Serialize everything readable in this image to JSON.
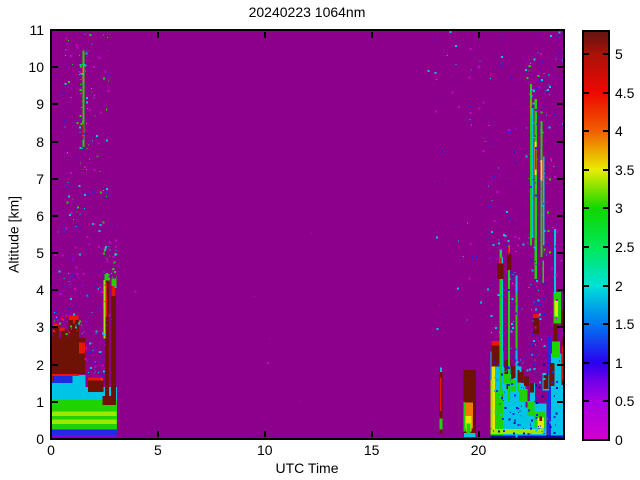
{
  "chart_data": {
    "type": "heatmap",
    "title": "20240223 1064nm",
    "xlabel": "UTC Time",
    "ylabel": "Altitude [km]",
    "xlim": [
      0,
      24
    ],
    "ylim": [
      0,
      11
    ],
    "xticks": [
      0,
      5,
      10,
      15,
      20
    ],
    "yticks": [
      0,
      1,
      2,
      3,
      4,
      5,
      6,
      7,
      8,
      9,
      10,
      11
    ],
    "grid": false,
    "legend": "colorbar-right",
    "background_color": "#8C008C",
    "colorbar": {
      "ticks": [
        0,
        0.5,
        1,
        1.5,
        2,
        2.5,
        3,
        3.5,
        4,
        4.5,
        5
      ],
      "vmin": 0,
      "vmax": 5.3,
      "stops": [
        [
          0,
          "#D000D0"
        ],
        [
          0.5,
          "#A800E0"
        ],
        [
          0.75,
          "#7700E8"
        ],
        [
          1,
          "#2A00EE"
        ],
        [
          1.5,
          "#0077F0"
        ],
        [
          2,
          "#00E0D8"
        ],
        [
          2.5,
          "#00E858"
        ],
        [
          3,
          "#11D600"
        ],
        [
          3.5,
          "#E8EC00"
        ],
        [
          4,
          "#F06000"
        ],
        [
          4.5,
          "#EE0800"
        ],
        [
          5,
          "#AA1208"
        ],
        [
          5.3,
          "#601410"
        ]
      ]
    },
    "palette": {
      "bg": "#8C008C",
      "maroon": "#6E1206",
      "red": "#E81800",
      "orange": "#F07800",
      "yellow": "#E6E600",
      "ygreen": "#A0E600",
      "green": "#1ED400",
      "bgreen": "#00E05A",
      "cyan": "#00C4E6",
      "lcyan": "#44DDF0",
      "teal": "#00E0C0",
      "blue": "#2228E8",
      "dblue": "#0A06B4",
      "violet": "#8A00D8",
      "magenta": "#CC00CC",
      "pink": "#E800E8"
    },
    "features": [
      [
        0,
        3.08,
        0.06,
        0.14,
        "violet"
      ],
      [
        0,
        3.08,
        0.1,
        0.3,
        "blue"
      ],
      [
        0,
        3.08,
        0.26,
        1.08,
        "green"
      ],
      [
        0,
        3.06,
        0.4,
        0.52,
        "ygreen"
      ],
      [
        0,
        3.06,
        0.62,
        0.74,
        "ygreen"
      ],
      [
        0,
        1.62,
        1.05,
        1.72,
        "cyan"
      ],
      [
        0,
        1.0,
        1.5,
        1.8,
        "blue"
      ],
      [
        1.62,
        3.08,
        1.05,
        1.4,
        "cyan"
      ],
      [
        0,
        0.14,
        1.55,
        2.3,
        "maroon"
      ],
      [
        0,
        0.06,
        1.55,
        1.8,
        "red"
      ],
      [
        0.06,
        1.3,
        1.7,
        1.78,
        "red"
      ],
      [
        0.05,
        1.58,
        1.75,
        2.72,
        "maroon"
      ],
      [
        0.08,
        0.38,
        2.7,
        3.02,
        "maroon"
      ],
      [
        0.5,
        0.78,
        2.68,
        2.92,
        "maroon"
      ],
      [
        0.82,
        1.3,
        2.7,
        3.22,
        "maroon"
      ],
      [
        0.1,
        0.36,
        3.0,
        3.1,
        "red"
      ],
      [
        0.85,
        1.28,
        3.2,
        3.32,
        "red"
      ],
      [
        0.4,
        0.62,
        2.9,
        3.0,
        "red"
      ],
      [
        1.3,
        1.58,
        2.3,
        2.6,
        "red"
      ],
      [
        1.74,
        2.46,
        1.26,
        1.6,
        "maroon"
      ],
      [
        1.74,
        2.46,
        1.58,
        1.66,
        "red"
      ],
      [
        2.4,
        2.8,
        0.92,
        1.15,
        "maroon"
      ],
      [
        2.52,
        2.72,
        1.08,
        4.3,
        "maroon"
      ],
      [
        2.46,
        2.54,
        2.7,
        4.28,
        "ygreen"
      ],
      [
        2.54,
        2.62,
        3.3,
        4.2,
        "red"
      ],
      [
        2.5,
        2.76,
        4.26,
        4.44,
        "green"
      ],
      [
        2.8,
        3.04,
        0.92,
        4.14,
        "maroon"
      ],
      [
        2.82,
        3.02,
        3.85,
        4.14,
        "red"
      ],
      [
        2.84,
        3.06,
        4.12,
        4.32,
        "green"
      ],
      [
        1.47,
        1.56,
        7.85,
        10.45,
        "green"
      ],
      [
        1.48,
        1.55,
        8.05,
        8.5,
        "red"
      ],
      [
        1.48,
        1.55,
        9.6,
        10.0,
        "orange"
      ],
      [
        18.18,
        18.31,
        0.15,
        1.8,
        "maroon"
      ],
      [
        18.2,
        18.28,
        0.75,
        1.65,
        "red"
      ],
      [
        18.18,
        18.31,
        0.25,
        0.55,
        "green"
      ],
      [
        18.2,
        18.29,
        1.8,
        1.92,
        "cyan"
      ],
      [
        19.3,
        19.88,
        0.12,
        1.85,
        "maroon"
      ],
      [
        19.3,
        19.38,
        0.2,
        1.0,
        "green"
      ],
      [
        19.36,
        19.74,
        0.28,
        0.98,
        "orange"
      ],
      [
        19.4,
        19.68,
        0.2,
        0.62,
        "yellow"
      ],
      [
        19.44,
        19.62,
        0.14,
        0.42,
        "green"
      ],
      [
        19.32,
        19.86,
        0.06,
        0.16,
        "cyan"
      ],
      [
        20.55,
        21.2,
        0,
        2.35,
        "cyan"
      ],
      [
        21.2,
        22.0,
        0,
        1.95,
        "cyan"
      ],
      [
        22.0,
        22.65,
        0,
        1.5,
        "cyan"
      ],
      [
        22.65,
        23.17,
        0,
        0.95,
        "cyan"
      ],
      [
        23.24,
        23.42,
        0,
        2.75,
        "blue"
      ],
      [
        23.4,
        23.96,
        0,
        2.3,
        "cyan"
      ],
      [
        20.55,
        21.15,
        0,
        1.3,
        "green"
      ],
      [
        20.62,
        20.78,
        0.25,
        1.95,
        "yellow"
      ],
      [
        20.57,
        20.66,
        0.3,
        1.6,
        "ygreen"
      ],
      [
        20.55,
        23.05,
        0.13,
        0.27,
        "ygreen"
      ],
      [
        20.55,
        23.96,
        0.0,
        0.1,
        "dblue"
      ],
      [
        22.2,
        22.42,
        0.85,
        1.5,
        "bg"
      ],
      [
        21.1,
        21.5,
        1.5,
        1.82,
        "green"
      ],
      [
        21.5,
        21.9,
        1.28,
        1.6,
        "green"
      ],
      [
        21.9,
        22.3,
        1.0,
        1.34,
        "green"
      ],
      [
        22.3,
        22.62,
        0.62,
        1.02,
        "green"
      ],
      [
        22.62,
        23.1,
        0.3,
        0.72,
        "green"
      ],
      [
        22.76,
        23.06,
        0.28,
        0.58,
        "yellow"
      ],
      [
        22.86,
        22.96,
        0.48,
        0.6,
        "maroon"
      ],
      [
        20.6,
        21.17,
        1.95,
        2.55,
        "maroon"
      ],
      [
        20.6,
        21.17,
        2.52,
        2.64,
        "red"
      ],
      [
        21.22,
        21.5,
        1.75,
        2.12,
        "maroon"
      ],
      [
        21.52,
        21.78,
        1.62,
        1.98,
        "maroon"
      ],
      [
        21.82,
        22.1,
        1.52,
        1.85,
        "maroon"
      ],
      [
        22.12,
        22.36,
        1.42,
        1.68,
        "maroon"
      ],
      [
        22.4,
        22.6,
        1.25,
        1.5,
        "maroon"
      ],
      [
        21.02,
        21.12,
        1.05,
        1.2,
        "maroon"
      ],
      [
        21.3,
        21.4,
        1.35,
        1.48,
        "maroon"
      ],
      [
        20.98,
        21.09,
        0.5,
        5.1,
        "green"
      ],
      [
        21.09,
        21.15,
        1.4,
        4.9,
        "cyan"
      ],
      [
        21.0,
        21.07,
        4.5,
        4.88,
        "red"
      ],
      [
        20.86,
        21.18,
        4.3,
        4.72,
        "maroon"
      ],
      [
        21.38,
        21.47,
        1.0,
        5.2,
        "green"
      ],
      [
        21.39,
        21.46,
        4.85,
        5.18,
        "red"
      ],
      [
        21.33,
        21.54,
        4.55,
        5.0,
        "maroon"
      ],
      [
        21.72,
        21.82,
        0.95,
        4.4,
        "cyan"
      ],
      [
        21.73,
        21.81,
        2.4,
        3.9,
        "green"
      ],
      [
        22.55,
        22.82,
        2.82,
        3.28,
        "maroon"
      ],
      [
        22.55,
        22.82,
        3.25,
        3.36,
        "red"
      ],
      [
        22.42,
        22.51,
        5.2,
        9.55,
        "green"
      ],
      [
        22.51,
        22.57,
        5.4,
        8.9,
        "cyan"
      ],
      [
        22.44,
        22.5,
        8.7,
        9.1,
        "orange"
      ],
      [
        22.62,
        22.73,
        4.3,
        9.15,
        "green"
      ],
      [
        22.63,
        22.72,
        7.1,
        8.0,
        "yellow"
      ],
      [
        22.64,
        22.71,
        7.25,
        7.8,
        "red"
      ],
      [
        22.9,
        23.0,
        4.9,
        8.55,
        "green"
      ],
      [
        22.91,
        22.99,
        6.95,
        7.5,
        "yellow"
      ],
      [
        23.02,
        23.08,
        5.2,
        7.6,
        "cyan"
      ],
      [
        23.0,
        23.3,
        1.3,
        1.78,
        "cyan"
      ],
      [
        23.05,
        23.27,
        1.35,
        1.72,
        "maroon"
      ],
      [
        23.0,
        23.07,
        4.2,
        4.8,
        "green"
      ],
      [
        23.35,
        23.56,
        1.42,
        2.05,
        "maroon"
      ],
      [
        23.5,
        23.7,
        2.62,
        3.15,
        "maroon"
      ],
      [
        23.45,
        23.82,
        2.2,
        2.62,
        "green"
      ],
      [
        23.5,
        23.86,
        3.1,
        3.95,
        "green"
      ],
      [
        23.56,
        23.72,
        3.3,
        3.72,
        "yellow"
      ],
      [
        23.54,
        23.62,
        3.92,
        5.65,
        "cyan"
      ],
      [
        23.86,
        24,
        2.98,
        3.45,
        "maroon"
      ],
      [
        23.88,
        24,
        1.45,
        2.65,
        "maroon"
      ],
      [
        23.9,
        23.98,
        1.6,
        2.5,
        "red"
      ]
    ],
    "dot_regions": [
      {
        "t": [
          0.5,
          2.7
        ],
        "a": [
          5.8,
          11
        ],
        "n": 120,
        "colors": [
          "cyan",
          "blue",
          "magenta",
          "green"
        ],
        "seed": 7
      },
      {
        "t": [
          0.05,
          3.05
        ],
        "a": [
          3.0,
          5.8
        ],
        "n": 110,
        "colors": [
          "magenta",
          "blue",
          "cyan",
          "violet"
        ],
        "seed": 11
      },
      {
        "t": [
          1.55,
          2.55
        ],
        "a": [
          1.55,
          3.0
        ],
        "n": 45,
        "colors": [
          "magenta",
          "blue",
          "cyan"
        ],
        "seed": 13
      },
      {
        "t": [
          1.3,
          1.75
        ],
        "a": [
          7.8,
          10.6
        ],
        "n": 35,
        "colors": [
          "cyan",
          "green"
        ],
        "seed": 17
      },
      {
        "t": [
          3.4,
          17.4
        ],
        "a": [
          0.4,
          6.5
        ],
        "n": 7,
        "colors": [
          "magenta"
        ],
        "seed": 19
      },
      {
        "t": [
          17.6,
          20.3
        ],
        "a": [
          8.6,
          11
        ],
        "n": 28,
        "colors": [
          "cyan",
          "blue",
          "magenta"
        ],
        "seed": 23
      },
      {
        "t": [
          18.0,
          20.45
        ],
        "a": [
          2.0,
          8.6
        ],
        "n": 30,
        "colors": [
          "cyan",
          "blue",
          "magenta"
        ],
        "seed": 29
      },
      {
        "t": [
          20.45,
          23.98
        ],
        "a": [
          2.8,
          11
        ],
        "n": 170,
        "colors": [
          "cyan",
          "blue",
          "magenta",
          "violet"
        ],
        "seed": 31
      },
      {
        "t": [
          22.25,
          23.3
        ],
        "a": [
          5.0,
          10.3
        ],
        "n": 70,
        "colors": [
          "cyan",
          "green",
          "blue"
        ],
        "seed": 37
      },
      {
        "t": [
          22.35,
          23.1
        ],
        "a": [
          1.8,
          5.2
        ],
        "n": 50,
        "colors": [
          "cyan",
          "blue"
        ],
        "seed": 41
      },
      {
        "t": [
          21.5,
          21.72
        ],
        "a": [
          2.0,
          4.6
        ],
        "n": 25,
        "colors": [
          "blue",
          "cyan"
        ],
        "seed": 61
      },
      {
        "t": [
          20.6,
          23.9
        ],
        "a": [
          0.08,
          2.2
        ],
        "n": 140,
        "colors": [
          "blue",
          "dblue",
          "cyan"
        ],
        "seed": 43
      },
      {
        "t": [
          0.1,
          1.55
        ],
        "a": [
          2.85,
          3.35
        ],
        "n": 26,
        "colors": [
          "green",
          "red",
          "cyan"
        ],
        "seed": 47
      },
      {
        "t": [
          2.4,
          3.1
        ],
        "a": [
          4.35,
          5.3
        ],
        "n": 22,
        "colors": [
          "cyan",
          "green",
          "magenta"
        ],
        "seed": 53
      },
      {
        "t": [
          20.5,
          21.9
        ],
        "a": [
          4.8,
          6.2
        ],
        "n": 18,
        "colors": [
          "magenta",
          "cyan"
        ],
        "seed": 59
      }
    ]
  }
}
